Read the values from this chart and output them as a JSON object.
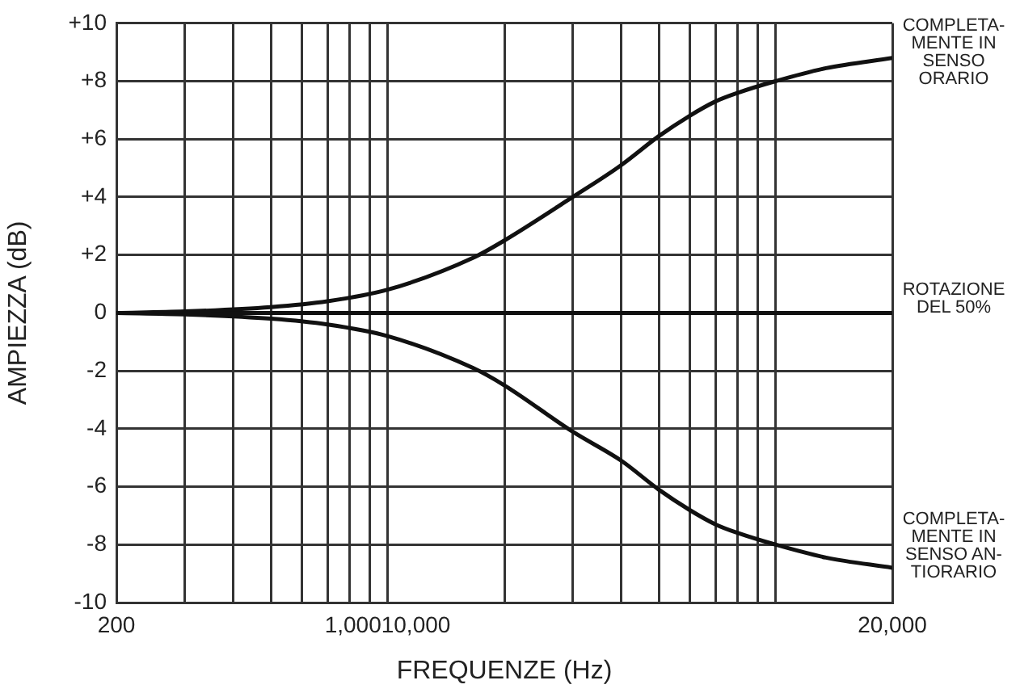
{
  "chart_data": {
    "type": "line",
    "xlabel": "FREQUENZE (Hz)",
    "ylabel": "AMPIEZZA (dB)",
    "series": [
      {
        "color": "#111111",
        "x": [
          200,
          300,
          500,
          700,
          1000,
          1660,
          2000,
          3000,
          4000,
          5000,
          6000,
          7000,
          8000,
          10000,
          13500,
          20000
        ],
        "values": [
          0,
          0.05,
          0.2,
          0.4,
          0.8,
          1.9,
          2.5,
          4.0,
          5.1,
          6.1,
          6.8,
          7.3,
          7.6,
          8.0,
          8.45,
          8.8
        ]
      },
      {
        "color": "#111111",
        "x": [
          200,
          20000
        ],
        "values": [
          0,
          0
        ]
      },
      {
        "color": "#111111",
        "x": [
          200,
          300,
          500,
          700,
          1000,
          1660,
          2000,
          3000,
          4000,
          5000,
          6000,
          7000,
          8000,
          10000,
          13500,
          20000
        ],
        "values": [
          0,
          -0.05,
          -0.2,
          -0.4,
          -0.8,
          -1.9,
          -2.5,
          -4.1,
          -5.1,
          -6.1,
          -6.8,
          -7.3,
          -7.6,
          -8.0,
          -8.45,
          -8.8
        ]
      }
    ],
    "log": "x",
    "xlim": [
      200,
      20000
    ],
    "xticks": [
      200,
      {
        "value": 300,
        "label": null
      },
      {
        "value": 400,
        "label": null
      },
      {
        "value": 500,
        "label": null
      },
      {
        "value": 600,
        "label": null
      },
      {
        "value": 700,
        "label": null
      },
      {
        "value": 800,
        "label": null
      },
      {
        "value": 900,
        "label": null
      },
      {
        "value": 1000,
        "label": "1,00010,000"
      },
      {
        "value": 2000,
        "label": null
      },
      {
        "value": 3000,
        "label": null
      },
      {
        "value": 4000,
        "label": null
      },
      {
        "value": 5000,
        "label": null
      },
      {
        "value": 6000,
        "label": null
      },
      {
        "value": 7000,
        "label": null
      },
      {
        "value": 8000,
        "label": null
      },
      {
        "value": 9000,
        "label": null
      },
      {
        "value": 10000,
        "label": null
      },
      {
        "value": 20000,
        "label": "20,000"
      }
    ],
    "ylim": [
      -10,
      10
    ],
    "yticks": [
      -10,
      -8,
      -6,
      -4,
      -2,
      0,
      {
        "value": 2,
        "label": "+2"
      },
      {
        "value": 4,
        "label": "+4"
      },
      {
        "value": 6,
        "label": "+6"
      },
      {
        "value": 8,
        "label": "+8"
      },
      {
        "value": 10,
        "label": "+10"
      }
    ],
    "grid": true,
    "legend": false,
    "marker": "none",
    "line_style": "solid",
    "annotations": [
      "COMPLETA-\nMENTE IN\nSENSO\nORARIO",
      "ROTAZIONE\nDEL 50%",
      "COMPLETA-\nMENTE IN\nSENSO AN-\nTIORARIO"
    ]
  }
}
